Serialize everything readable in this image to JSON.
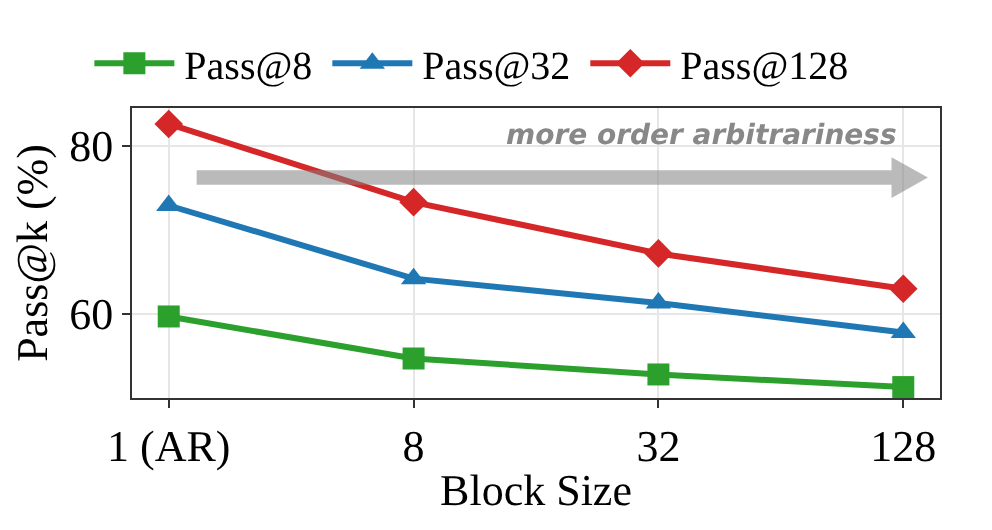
{
  "chart_data": {
    "type": "line",
    "xlabel": "Block Size",
    "ylabel": "Pass@k (%)",
    "categories": [
      "1 (AR)",
      "8",
      "32",
      "128"
    ],
    "series": [
      {
        "name": "Pass@8",
        "color": "#2ca02c",
        "marker": "square",
        "values": [
          59.7,
          54.7,
          52.8,
          51.3
        ]
      },
      {
        "name": "Pass@32",
        "color": "#1f77b4",
        "marker": "triangle",
        "values": [
          72.9,
          64.2,
          61.3,
          57.8
        ]
      },
      {
        "name": "Pass@128",
        "color": "#d62728",
        "marker": "diamond",
        "values": [
          82.6,
          73.3,
          67.2,
          63.0
        ]
      }
    ],
    "ylim": [
      50,
      84.5
    ],
    "yticks": [
      60,
      80
    ],
    "grid": true,
    "legend": "top",
    "annotations": [
      "more order arbitrariness"
    ]
  }
}
